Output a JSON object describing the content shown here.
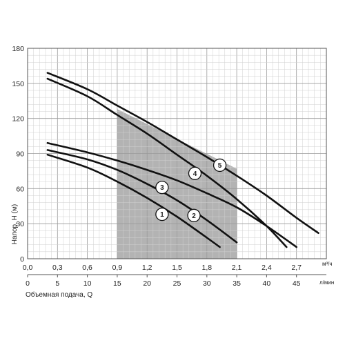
{
  "chart_data": {
    "type": "line",
    "xlabel": "Объемная подача, Q",
    "ylabel": "Напор, H (м)",
    "ylim": [
      0,
      180
    ],
    "xlim": [
      0,
      3.0
    ],
    "x_unit_top": "м³/ч",
    "x_unit_bottom": "л/мин",
    "yticks": [
      "0",
      "30",
      "60",
      "90",
      "120",
      "150",
      "180"
    ],
    "xticks_top": [
      "0,0",
      "0,3",
      "0,6",
      "0,9",
      "1,2",
      "1,5",
      "1,8",
      "2,1",
      "2,4",
      "2,7"
    ],
    "xticks_bottom": [
      "0",
      "5",
      "10",
      "15",
      "20",
      "25",
      "30",
      "35",
      "40",
      "45"
    ],
    "grid": true,
    "shaded_regions": [
      {
        "x": [
          0.9,
          1.5
        ],
        "y_top": [
          47,
          47
        ],
        "color": "#d9d9d9"
      },
      {
        "x": [
          1.5,
          1.8
        ],
        "y_top": [
          57,
          47
        ],
        "color": "#b3b3b3"
      },
      {
        "x": [
          1.8,
          2.1
        ],
        "y_top": [
          57,
          51
        ],
        "color": "#8c8c8c"
      },
      {
        "x": [
          0.9,
          1.8
        ],
        "y_top": [
          123,
          86
        ],
        "color": "#6f6f6f"
      },
      {
        "x": [
          1.8,
          2.1
        ],
        "y_top": [
          86,
          72
        ],
        "color": "#b3b3b3"
      },
      {
        "x": [
          0.9,
          2.1
        ],
        "y_top": [
          128,
          77
        ],
        "color": "#b3b3b3"
      }
    ],
    "series": [
      {
        "name": "1",
        "x": [
          0.2,
          0.6,
          0.9,
          1.2,
          1.5,
          1.8,
          1.93
        ],
        "y": [
          89,
          78,
          66,
          52,
          36,
          18,
          10
        ]
      },
      {
        "name": "2",
        "x": [
          0.2,
          0.6,
          0.9,
          1.2,
          1.5,
          1.8,
          2.1
        ],
        "y": [
          93,
          85,
          76,
          64,
          50,
          33,
          14
        ]
      },
      {
        "name": "3",
        "x": [
          0.2,
          0.6,
          0.9,
          1.2,
          1.5,
          1.8,
          2.1,
          2.4,
          2.7
        ],
        "y": [
          99,
          91,
          84,
          76,
          67,
          56,
          44,
          28,
          10
        ]
      },
      {
        "name": "4",
        "x": [
          0.2,
          0.6,
          0.9,
          1.2,
          1.5,
          1.8,
          2.1,
          2.4,
          2.6
        ],
        "y": [
          154,
          139,
          123,
          107,
          89,
          71,
          51,
          28,
          10
        ]
      },
      {
        "name": "5",
        "x": [
          0.2,
          0.6,
          0.9,
          1.2,
          1.5,
          1.8,
          2.1,
          2.4,
          2.7,
          2.92
        ],
        "y": [
          159,
          145,
          131,
          117,
          102,
          87,
          71,
          54,
          35,
          22
        ]
      }
    ],
    "markers": [
      {
        "label": "1",
        "x": 1.35,
        "y": 38
      },
      {
        "label": "2",
        "x": 1.67,
        "y": 37
      },
      {
        "label": "3",
        "x": 1.35,
        "y": 61
      },
      {
        "label": "4",
        "x": 1.68,
        "y": 73
      },
      {
        "label": "5",
        "x": 1.93,
        "y": 80
      }
    ]
  }
}
